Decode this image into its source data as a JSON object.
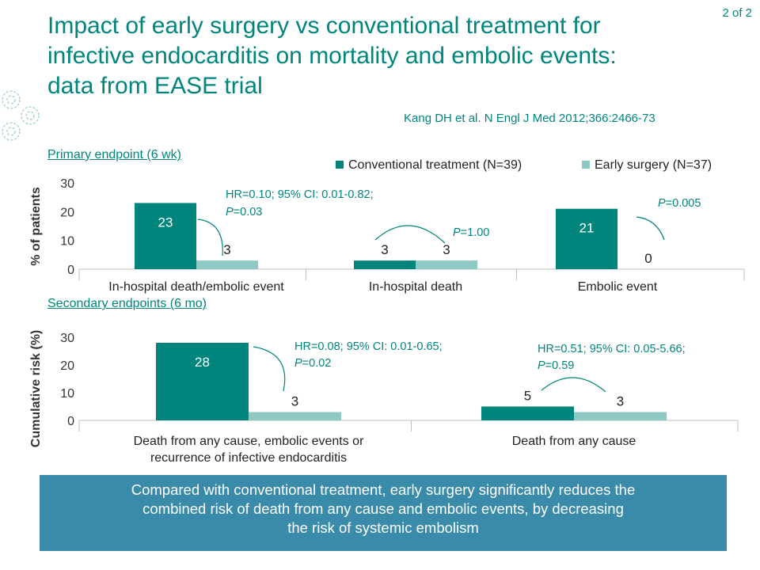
{
  "slide_number": "2 of 2",
  "title_lines": [
    "Impact of early surgery vs conventional treatment for",
    "infective endocarditis on mortality and embolic events:",
    "data from EASE trial"
  ],
  "reference": "Kang DH et al. N Engl J Med 2012;366:2466-73",
  "primary_label": "Primary endpoint (6 wk)",
  "secondary_label": "Secondary endpoints (6 mo)",
  "colors": {
    "conventional": "#00857c",
    "early": "#8ec8c4",
    "accent": "#00857c",
    "banner": "#3a8ba9"
  },
  "conclusion_lines": [
    "Compared with conventional treatment, early surgery significantly reduces the",
    "combined risk of death from any cause and embolic events, by decreasing",
    "the risk of systemic embolism"
  ],
  "chart_data": [
    {
      "type": "bar",
      "ylabel": "% of patients",
      "ylim": [
        0,
        30
      ],
      "yticks": [
        0,
        10,
        20,
        30
      ],
      "categories": [
        [
          "In-hospital death/embolic event"
        ],
        [
          "In-hospital death"
        ],
        [
          "Embolic event"
        ]
      ],
      "series": [
        {
          "name": "Conventional treatment (N=39)",
          "values": [
            23,
            3,
            21
          ]
        },
        {
          "name": "Early surgery (N=37)",
          "values": [
            3,
            3,
            0
          ]
        }
      ],
      "data_labels": [
        [
          "23",
          "3"
        ],
        [
          "3",
          "3"
        ],
        [
          "21",
          "0"
        ]
      ],
      "legend_position": "top-right",
      "annotations": [
        {
          "lines": [
            "HR=0.10; 95% CI: 0.01-0.82;",
            "P=0.03"
          ]
        },
        {
          "lines": [
            "P=1.00"
          ]
        },
        {
          "lines": [
            "P=0.005"
          ]
        }
      ]
    },
    {
      "type": "bar",
      "ylabel": "Cumulative risk (%)",
      "ylim": [
        0,
        30
      ],
      "yticks": [
        0,
        10,
        20,
        30
      ],
      "categories": [
        [
          "Death from any cause, embolic events or",
          "recurrence of infective endocarditis"
        ],
        [
          "Death from any cause"
        ]
      ],
      "series": [
        {
          "name": "Conventional treatment (N=39)",
          "values": [
            28,
            5
          ]
        },
        {
          "name": "Early surgery (N=37)",
          "values": [
            3,
            3
          ]
        }
      ],
      "data_labels": [
        [
          "28",
          "3"
        ],
        [
          "5",
          "3"
        ]
      ],
      "annotations": [
        {
          "lines": [
            "HR=0.08; 95% CI: 0.01-0.65;",
            "P=0.02"
          ]
        },
        {
          "lines": [
            "HR=0.51; 95% CI: 0.05-5.66;",
            "P=0.59"
          ]
        }
      ]
    }
  ]
}
